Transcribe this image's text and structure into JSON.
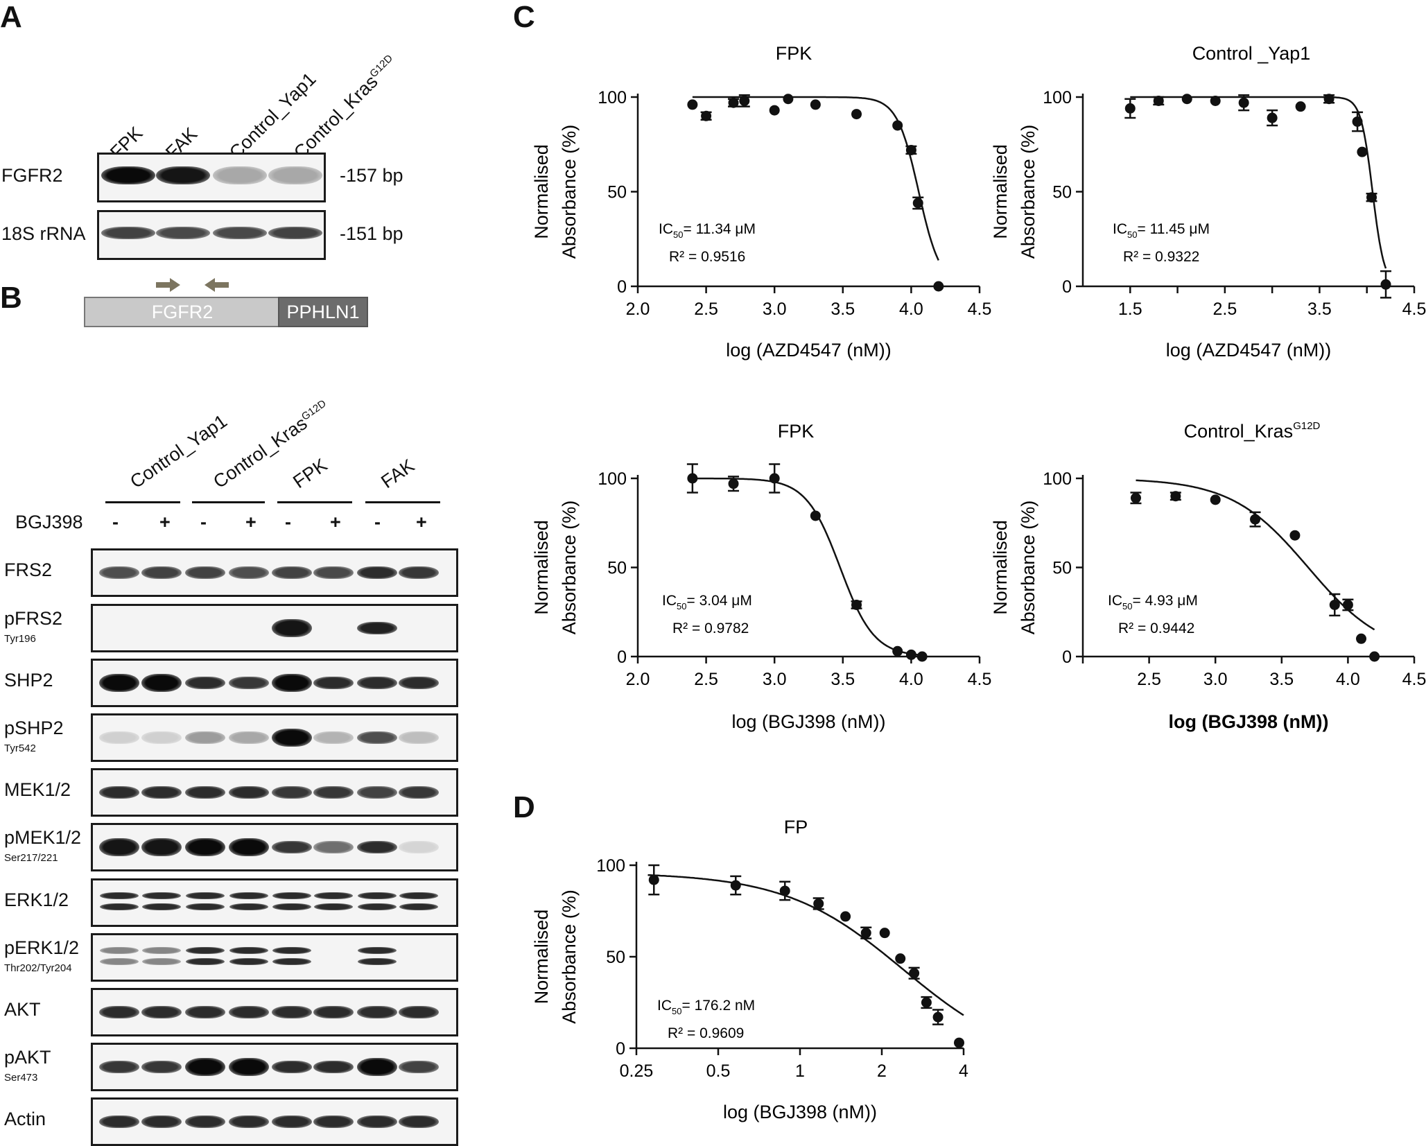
{
  "panelA": {
    "letter": "A",
    "lanes": [
      "FPK",
      "FAK",
      "Control_Yap1",
      "Control_Kras"
    ],
    "lane_sup": [
      "",
      "",
      "",
      "G12D"
    ],
    "rows": [
      {
        "label": "FGFR2",
        "size": "-157 bp",
        "intensity": [
          1.0,
          0.95,
          0.3,
          0.3
        ]
      },
      {
        "label": "18S rRNA",
        "size": "-151 bp",
        "intensity": [
          0.75,
          0.72,
          0.72,
          0.75
        ]
      }
    ],
    "gene_left": "FGFR2",
    "gene_right": "PPHLN1"
  },
  "panelB": {
    "letter": "B",
    "groups": [
      {
        "label": "Control_Yap1",
        "sup": ""
      },
      {
        "label": "Control_Kras",
        "sup": "G12D"
      },
      {
        "label": "FPK",
        "sup": ""
      },
      {
        "label": "FAK",
        "sup": ""
      }
    ],
    "treatment_label": "BGJ398",
    "treatment_signs": [
      "-",
      "+",
      "-",
      "+",
      "-",
      "+",
      "-",
      "+"
    ],
    "rows": [
      {
        "label": "FRS2",
        "sub": "",
        "intensity": [
          0.7,
          0.75,
          0.75,
          0.7,
          0.75,
          0.72,
          0.85,
          0.8
        ]
      },
      {
        "label": "pFRS2",
        "sub": "Tyr196",
        "intensity": [
          0,
          0,
          0,
          0,
          0.95,
          0,
          0.9,
          0
        ]
      },
      {
        "label": "SHP2",
        "sub": "",
        "intensity": [
          1.0,
          1.0,
          0.85,
          0.8,
          1.0,
          0.85,
          0.85,
          0.85
        ]
      },
      {
        "label": "pSHP2",
        "sub": "Tyr542",
        "intensity": [
          0.12,
          0.12,
          0.35,
          0.3,
          1.0,
          0.25,
          0.7,
          0.2
        ]
      },
      {
        "label": "MEK1/2",
        "sub": "",
        "intensity": [
          0.85,
          0.85,
          0.85,
          0.85,
          0.8,
          0.8,
          0.75,
          0.8
        ]
      },
      {
        "label": "pMEK1/2",
        "sub": "Ser217/221",
        "intensity": [
          0.95,
          0.95,
          1.0,
          1.0,
          0.8,
          0.55,
          0.85,
          0.1
        ]
      },
      {
        "label": "ERK1/2",
        "sub": "",
        "intensity": [
          0.85,
          0.85,
          0.85,
          0.85,
          0.85,
          0.85,
          0.85,
          0.85
        ]
      },
      {
        "label": "pERK1/2",
        "sub": "Thr202/Tyr204",
        "intensity": [
          0.45,
          0.45,
          0.85,
          0.85,
          0.85,
          0,
          0.85,
          0
        ]
      },
      {
        "label": "AKT",
        "sub": "",
        "intensity": [
          0.85,
          0.85,
          0.85,
          0.85,
          0.85,
          0.85,
          0.85,
          0.85
        ]
      },
      {
        "label": "pAKT",
        "sub": "Ser473",
        "intensity": [
          0.8,
          0.8,
          1.0,
          1.0,
          0.85,
          0.85,
          1.0,
          0.75
        ]
      },
      {
        "label": "Actin",
        "sub": "",
        "intensity": [
          0.85,
          0.85,
          0.85,
          0.85,
          0.85,
          0.85,
          0.85,
          0.85
        ]
      }
    ]
  },
  "panelC": {
    "letter": "C"
  },
  "panelD": {
    "letter": "D"
  },
  "chart_data": [
    {
      "type": "scatter",
      "title": "FPK",
      "title_sup": "",
      "xlabel": "log (AZD4547 (nM))",
      "ylabel": "Normalised Absorbance (%)",
      "xlim": [
        2.0,
        4.5
      ],
      "ylim": [
        0,
        100
      ],
      "xticks": [
        "2.0",
        "2.5",
        "3.0",
        "3.5",
        "4.0",
        "4.5"
      ],
      "xtick_values": [
        2.0,
        2.5,
        3.0,
        3.5,
        4.0,
        4.5
      ],
      "yticks": [
        0,
        50,
        100
      ],
      "x": [
        2.4,
        2.5,
        2.7,
        2.78,
        3.0,
        3.1,
        3.3,
        3.6,
        3.9,
        4.0,
        4.05,
        4.2
      ],
      "y": [
        96,
        90,
        97,
        98,
        93,
        99,
        96,
        91,
        85,
        72,
        44,
        0
      ],
      "err": [
        0,
        2,
        2,
        3,
        0,
        0,
        0,
        0,
        0,
        2,
        3,
        0
      ],
      "fit": {
        "top": 100,
        "bottom": 0,
        "logIC50": 4.055,
        "hill": -5.5
      },
      "ic50": "11.34 μM",
      "r2": "R² = 0.9516"
    },
    {
      "type": "scatter",
      "title": "Control _Yap1",
      "title_sup": "",
      "xlabel": "log (AZD4547 (nM))",
      "ylabel": "Normalised Absorbance (%)",
      "xlim": [
        1.0,
        4.5
      ],
      "ylim": [
        0,
        100
      ],
      "xticks": [
        "1.5",
        "2.5",
        "3.5",
        "4.5"
      ],
      "xtick_values": [
        1.5,
        2.5,
        3.5,
        4.5
      ],
      "minor_xticks": [
        2.0,
        3.0,
        4.0
      ],
      "yticks": [
        0,
        50,
        100
      ],
      "x": [
        1.5,
        1.8,
        2.1,
        2.4,
        2.7,
        3.0,
        3.3,
        3.6,
        3.9,
        3.95,
        4.05,
        4.2
      ],
      "y": [
        94,
        98,
        99,
        98,
        97,
        89,
        95,
        99,
        87,
        71,
        47,
        1
      ],
      "err": [
        5,
        2,
        0,
        0,
        4,
        4,
        0,
        2,
        5,
        0,
        2,
        7
      ],
      "fit": {
        "top": 100,
        "bottom": 0,
        "logIC50": 4.06,
        "hill": -7.0
      },
      "ic50": "11.45 μM",
      "r2": "R² = 0.9322"
    },
    {
      "type": "scatter",
      "title": "FPK",
      "title_sup": "",
      "xlabel": "log (BGJ398 (nM))",
      "ylabel": "Normalised Absorbance (%)",
      "xlim": [
        2.0,
        4.5
      ],
      "ylim": [
        0,
        100
      ],
      "xticks": [
        "2.0",
        "2.5",
        "3.0",
        "3.5",
        "4.0",
        "4.5"
      ],
      "xtick_values": [
        2.0,
        2.5,
        3.0,
        3.5,
        4.0,
        4.5
      ],
      "yticks": [
        0,
        50,
        100
      ],
      "x": [
        2.4,
        2.7,
        3.0,
        3.3,
        3.6,
        3.9,
        4.0,
        4.08
      ],
      "y": [
        100,
        97,
        100,
        79,
        29,
        3,
        1,
        0
      ],
      "err": [
        8,
        4,
        8,
        0,
        2,
        0,
        0,
        0
      ],
      "fit": {
        "top": 100,
        "bottom": 0,
        "logIC50": 3.48,
        "hill": -3.5
      },
      "ic50": "3.04 μM",
      "r2": "R² = 0.9782"
    },
    {
      "type": "scatter",
      "title": "Control_Kras",
      "title_sup": "G12D",
      "xlabel": "log (BGJ398 (nM))",
      "ylabel": "Normalised Absorbance (%)",
      "xlim": [
        2.0,
        4.5
      ],
      "ylim": [
        0,
        100
      ],
      "xticks": [
        "2.5",
        "3.0",
        "3.5",
        "4.0",
        "4.5"
      ],
      "xtick_values": [
        2.5,
        3.0,
        3.5,
        4.0,
        4.5
      ],
      "minor_xticks": [
        2.0
      ],
      "yticks": [
        0,
        50,
        100
      ],
      "x": [
        2.4,
        2.7,
        3.0,
        3.3,
        3.6,
        3.9,
        4.0,
        4.1,
        4.2
      ],
      "y": [
        89,
        90,
        88,
        77,
        68,
        29,
        29,
        10,
        0
      ],
      "err": [
        3,
        2,
        0,
        4,
        0,
        6,
        3,
        0,
        0
      ],
      "fit": {
        "top": 100,
        "bottom": 0,
        "logIC50": 3.7,
        "hill": -1.5
      },
      "ic50": "4.93 μM",
      "r2": "R² = 0.9442",
      "bold_xlabel": true
    },
    {
      "type": "scatter",
      "title": "FP",
      "title_sup": "",
      "xlabel": "log (BGJ398 (nM))",
      "ylabel": "Normalised Absorbance (%)",
      "xscale": "log2",
      "xlim": [
        0.25,
        4
      ],
      "ylim": [
        0,
        100
      ],
      "xticks": [
        "0.25",
        "0.5",
        "1",
        "2",
        "4"
      ],
      "xtick_values": [
        0.25,
        0.5,
        1,
        2,
        4
      ],
      "yticks": [
        0,
        50,
        100
      ],
      "x": [
        0.29,
        0.58,
        0.88,
        1.17,
        1.47,
        1.75,
        2.05,
        2.34,
        2.63,
        2.92,
        3.22,
        3.85
      ],
      "y": [
        92,
        89,
        86,
        79,
        72,
        63,
        63,
        49,
        41,
        25,
        17,
        3
      ],
      "err": [
        8,
        5,
        5,
        3,
        0,
        3,
        0,
        0,
        3,
        3,
        4,
        0
      ],
      "fit": {
        "top": 96,
        "bottom": -10,
        "ic50": 2.4,
        "hill": -2.0
      },
      "ic50": "176.2 nM",
      "r2": "R² = 0.9609"
    }
  ]
}
